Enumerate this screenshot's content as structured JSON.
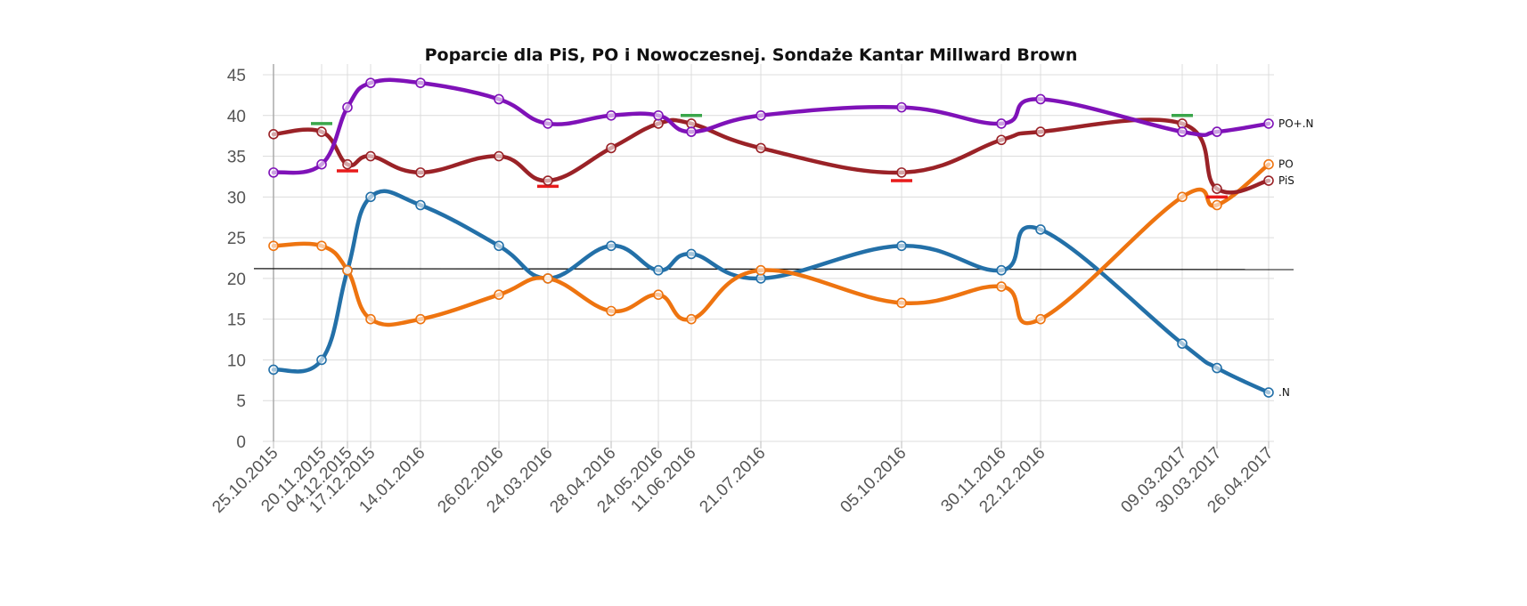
{
  "chart_data": {
    "type": "line",
    "title": "Poparcie dla PiS, PO i Nowoczesnej. Sondaże Kantar Millward Brown",
    "x": [
      "25.10.2015",
      "20.11.2015",
      "04.12.2015",
      "17.12.2015",
      "14.01.2016",
      "26.02.2016",
      "24.03.2016",
      "28.04.2016",
      "24.05.2016",
      "11.06.2016",
      "21.07.2016",
      "05.10.2016",
      "30.11.2016",
      "22.12.2016",
      "09.03.2017",
      "30.03.2017",
      "26.04.2017"
    ],
    "ylim": [
      0,
      45
    ],
    "yticks": [
      0,
      5,
      10,
      15,
      20,
      25,
      30,
      35,
      40,
      45
    ],
    "grid": true,
    "series": [
      {
        "name": "PO+.N",
        "color": "#7f12b8",
        "values": [
          33,
          34,
          41,
          44,
          44,
          42,
          39,
          40,
          40,
          38,
          40,
          41,
          39,
          42,
          38,
          38,
          39
        ]
      },
      {
        "name": "PO",
        "color": "#ee7410",
        "values": [
          24,
          24,
          21,
          15,
          15,
          18,
          20,
          16,
          18,
          15,
          21,
          17,
          19,
          15,
          30,
          29,
          34
        ]
      },
      {
        "name": "PiS",
        "color": "#9a2227",
        "values": [
          37.7,
          38,
          34,
          35,
          33,
          35,
          32,
          36,
          39,
          39,
          36,
          33,
          37,
          38,
          39,
          31,
          32
        ]
      },
      {
        "name": ".N",
        "color": "#2370a8",
        "values": [
          8.8,
          10,
          21,
          30,
          29,
          24,
          20,
          24,
          21,
          23,
          20,
          24,
          21,
          26,
          12,
          9,
          6
        ]
      }
    ],
    "reference_line": {
      "y": 21.2,
      "color": "#111111"
    },
    "markers": [
      {
        "x": "20.11.2015",
        "y": 39,
        "color": "#3aa64a"
      },
      {
        "x": "04.12.2015",
        "y": 33.2,
        "color": "#e81b1b"
      },
      {
        "x": "24.03.2016",
        "y": 31.3,
        "color": "#e81b1b"
      },
      {
        "x": "11.06.2016",
        "y": 40,
        "color": "#3aa64a"
      },
      {
        "x": "05.10.2016",
        "y": 32,
        "color": "#e81b1b"
      },
      {
        "x": "09.03.2017",
        "y": 40,
        "color": "#3aa64a"
      },
      {
        "x": "30.03.2017",
        "y": 30,
        "color": "#e81b1b"
      }
    ]
  }
}
